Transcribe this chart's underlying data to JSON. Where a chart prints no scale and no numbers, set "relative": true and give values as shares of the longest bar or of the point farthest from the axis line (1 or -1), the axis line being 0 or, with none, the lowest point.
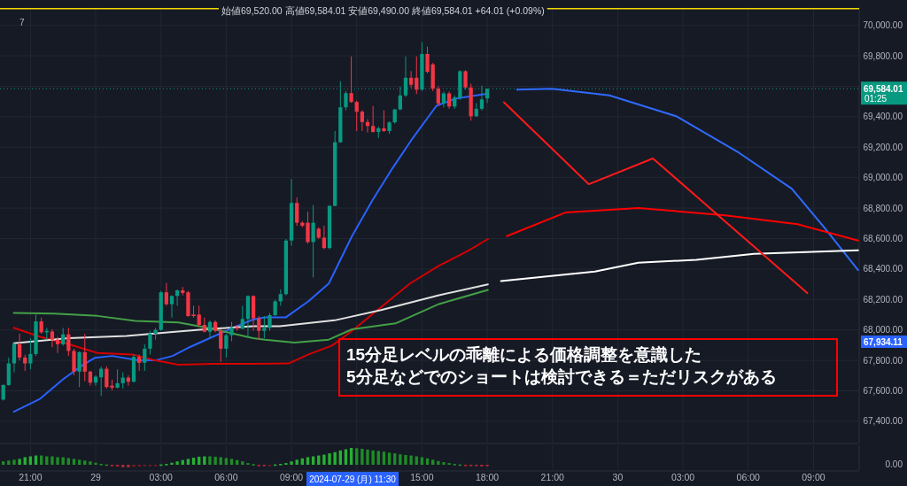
{
  "chart_data": [
    {
      "type": "candlestick",
      "subtitle": "始値69,520.00 高値69,584.01 安値69,490.00 終値69,584.01 +64.01 (+0.09%)",
      "x": [
        "2024-07-28T19:45",
        "2024-07-28T20:00",
        "2024-07-28T20:15",
        "2024-07-28T20:30",
        "2024-07-28T20:45",
        "2024-07-28T21:00",
        "2024-07-28T21:15",
        "2024-07-28T21:30",
        "2024-07-28T21:45",
        "2024-07-28T22:00",
        "2024-07-28T22:15",
        "2024-07-28T22:30",
        "2024-07-28T22:45",
        "2024-07-28T23:00",
        "2024-07-28T23:15",
        "2024-07-28T23:30",
        "2024-07-28T23:45",
        "2024-07-29T00:00",
        "2024-07-29T00:15",
        "2024-07-29T00:30",
        "2024-07-29T00:45",
        "2024-07-29T01:00",
        "2024-07-29T01:15",
        "2024-07-29T01:30",
        "2024-07-29T01:45",
        "2024-07-29T02:00",
        "2024-07-29T02:15",
        "2024-07-29T02:30",
        "2024-07-29T02:45",
        "2024-07-29T03:00",
        "2024-07-29T03:15",
        "2024-07-29T03:30",
        "2024-07-29T03:45",
        "2024-07-29T04:00",
        "2024-07-29T04:15",
        "2024-07-29T04:30",
        "2024-07-29T04:45",
        "2024-07-29T05:00",
        "2024-07-29T05:15",
        "2024-07-29T05:30",
        "2024-07-29T05:45",
        "2024-07-29T06:00",
        "2024-07-29T06:15",
        "2024-07-29T06:30",
        "2024-07-29T06:45",
        "2024-07-29T07:00",
        "2024-07-29T07:15",
        "2024-07-29T07:30",
        "2024-07-29T07:45",
        "2024-07-29T08:00",
        "2024-07-29T08:15",
        "2024-07-29T08:30",
        "2024-07-29T08:45",
        "2024-07-29T09:00",
        "2024-07-29T09:15",
        "2024-07-29T09:30",
        "2024-07-29T09:45",
        "2024-07-29T10:00",
        "2024-07-29T10:15",
        "2024-07-29T10:30",
        "2024-07-29T10:45",
        "2024-07-29T11:00",
        "2024-07-29T11:15",
        "2024-07-29T11:30",
        "2024-07-29T11:45",
        "2024-07-29T12:00",
        "2024-07-29T12:15",
        "2024-07-29T12:30",
        "2024-07-29T12:45",
        "2024-07-29T13:00",
        "2024-07-29T13:15",
        "2024-07-29T13:30",
        "2024-07-29T13:45",
        "2024-07-29T14:00",
        "2024-07-29T14:15",
        "2024-07-29T14:30",
        "2024-07-29T14:45",
        "2024-07-29T15:00",
        "2024-07-29T15:15",
        "2024-07-29T15:30",
        "2024-07-29T15:45",
        "2024-07-29T16:00",
        "2024-07-29T16:15",
        "2024-07-29T16:30",
        "2024-07-29T16:45",
        "2024-07-29T17:00",
        "2024-07-29T17:15",
        "2024-07-29T17:30",
        "2024-07-29T17:45",
        "2024-07-29T18:00"
      ],
      "ohlc": [
        [
          67543,
          67644,
          67536,
          67638
        ],
        [
          67638,
          67819,
          67634,
          67780
        ],
        [
          67780,
          67916,
          67722,
          67906
        ],
        [
          67906,
          67975,
          67800,
          67819
        ],
        [
          67819,
          67838,
          67731,
          67780
        ],
        [
          67780,
          67945,
          67741,
          67842
        ],
        [
          67842,
          68101,
          67829,
          68056
        ],
        [
          68056,
          68081,
          67975,
          67984
        ],
        [
          67984,
          68013,
          67936,
          67994
        ],
        [
          67990,
          68004,
          67887,
          67936
        ],
        [
          67936,
          67955,
          67848,
          67906
        ],
        [
          67906,
          68013,
          67897,
          67971
        ],
        [
          67971,
          68013,
          67829,
          67862
        ],
        [
          67862,
          67877,
          67702,
          67726
        ],
        [
          67726,
          67858,
          67625,
          67854
        ],
        [
          67854,
          67975,
          67664,
          67726
        ],
        [
          67726,
          67732,
          67634,
          67654
        ],
        [
          67654,
          67702,
          67634,
          67693
        ],
        [
          67689,
          67761,
          67566,
          67745
        ],
        [
          67745,
          67761,
          67615,
          67625
        ],
        [
          67634,
          67673,
          67605,
          67621
        ],
        [
          67621,
          67741,
          67615,
          67650
        ],
        [
          67650,
          67722,
          67615,
          67687
        ],
        [
          67687,
          67702,
          67634,
          67660
        ],
        [
          67660,
          67838,
          67654,
          67823
        ],
        [
          67823,
          67838,
          67731,
          67784
        ],
        [
          67784,
          67906,
          67731,
          67877
        ],
        [
          67877,
          67994,
          67838,
          67975
        ],
        [
          67975,
          68013,
          67936,
          68000
        ],
        [
          68000,
          68256,
          67994,
          68247
        ],
        [
          68247,
          68309,
          68159,
          68169
        ],
        [
          68169,
          68227,
          68081,
          68223
        ],
        [
          68223,
          68266,
          68159,
          68260
        ],
        [
          68260,
          68282,
          68227,
          68243
        ],
        [
          68247,
          68256,
          68087,
          68091
        ],
        [
          68101,
          68159,
          68081,
          68091
        ],
        [
          68101,
          68159,
          68023,
          68033
        ],
        [
          68033,
          68081,
          67984,
          67988
        ],
        [
          67988,
          68062,
          67945,
          68052
        ],
        [
          68052,
          68062,
          67984,
          67994
        ],
        [
          67994,
          68004,
          67790,
          67877
        ],
        [
          67877,
          67975,
          67819,
          67965
        ],
        [
          67965,
          68052,
          67926,
          68017
        ],
        [
          68017,
          68033,
          67994,
          68008
        ],
        [
          68008,
          68159,
          68004,
          68072
        ],
        [
          68072,
          68227,
          67945,
          68223
        ],
        [
          68223,
          68227,
          67994,
          68076
        ],
        [
          68076,
          68091,
          67936,
          67994
        ],
        [
          67994,
          68091,
          67945,
          68013
        ],
        [
          68013,
          68111,
          67994,
          68097
        ],
        [
          68097,
          68198,
          68091,
          68188
        ],
        [
          68188,
          68266,
          68159,
          68235
        ],
        [
          68235,
          68597,
          68227,
          68587
        ],
        [
          68587,
          68991,
          68554,
          68834
        ],
        [
          68834,
          68869,
          68684,
          68704
        ],
        [
          68704,
          68713,
          68674,
          68684
        ],
        [
          68704,
          68777,
          68567,
          68577
        ],
        [
          68577,
          68820,
          68344,
          68704
        ],
        [
          68665,
          68674,
          68597,
          68606
        ],
        [
          68606,
          68684,
          68529,
          68538
        ],
        [
          68538,
          68820,
          68529,
          68814
        ],
        [
          68814,
          69306,
          68814,
          69232
        ],
        [
          69232,
          69633,
          69228,
          69462
        ],
        [
          69462,
          69569,
          69442,
          69555
        ],
        [
          69555,
          69796,
          69491,
          69497
        ],
        [
          69497,
          69506,
          69306,
          69433
        ],
        [
          69433,
          69442,
          69306,
          69365
        ],
        [
          69365,
          69384,
          69296,
          69339
        ],
        [
          69339,
          69471,
          69296,
          69300
        ],
        [
          69300,
          69335,
          69261,
          69324
        ],
        [
          69324,
          69442,
          69300,
          69306
        ],
        [
          69306,
          69370,
          69287,
          69363
        ],
        [
          69363,
          69452,
          69355,
          69448
        ],
        [
          69448,
          69598,
          69442,
          69540
        ],
        [
          69540,
          69796,
          69530,
          69656
        ],
        [
          69656,
          69700,
          69590,
          69610
        ],
        [
          69656,
          69796,
          69549,
          69578
        ],
        [
          69578,
          69890,
          69569,
          69812
        ],
        [
          69812,
          69860,
          69685,
          69695
        ],
        [
          69744,
          69753,
          69569,
          69584
        ],
        [
          69584,
          69600,
          69471,
          69487
        ],
        [
          69487,
          69565,
          69462,
          69553
        ],
        [
          69553,
          69565,
          69452,
          69467
        ],
        [
          69467,
          69540,
          69452,
          69526
        ],
        [
          69526,
          69705,
          69510,
          69699
        ],
        [
          69699,
          69705,
          69578,
          69592
        ],
        [
          69592,
          69617,
          69374,
          69403
        ],
        [
          69403,
          69490,
          69400,
          69452
        ],
        [
          69452,
          69604,
          69440,
          69514
        ],
        [
          69520,
          69584.01,
          69490,
          69584.01
        ]
      ],
      "colors": [
        "#089981",
        "#089981",
        "#089981",
        "#f23645",
        "#f23645",
        "#089981",
        "#089981",
        "#f23645",
        "#089981",
        "#f23645",
        "#f23645",
        "#089981",
        "#f23645",
        "#f23645",
        "#089981",
        "#f23645",
        "#f23645",
        "#089981",
        "#089981",
        "#f23645",
        "#f23645",
        "#089981",
        "#089981",
        "#f23645",
        "#089981",
        "#f23645",
        "#089981",
        "#089981",
        "#089981",
        "#089981",
        "#f23645",
        "#089981",
        "#089981",
        "#f23645",
        "#f23645",
        "#f23645",
        "#f23645",
        "#f23645",
        "#089981",
        "#f23645",
        "#f23645",
        "#089981",
        "#089981",
        "#f23645",
        "#089981",
        "#089981",
        "#f23645",
        "#f23645",
        "#089981",
        "#089981",
        "#089981",
        "#089981",
        "#089981",
        "#089981",
        "#f23645",
        "#f23645",
        "#f23645",
        "#089981",
        "#f23645",
        "#f23645",
        "#089981",
        "#089981",
        "#089981",
        "#089981",
        "#f23645",
        "#f23645",
        "#f23645",
        "#f23645",
        "#f23645",
        "#089981",
        "#f23645",
        "#089981",
        "#089981",
        "#089981",
        "#089981",
        "#f23645",
        "#f23645",
        "#089981",
        "#f23645",
        "#f23645",
        "#f23645",
        "#089981",
        "#f23645",
        "#089981",
        "#089981",
        "#f23645",
        "#f23645",
        "#089981",
        "#089981",
        "#089981"
      ],
      "series": [
        {
          "type": "line",
          "color": "#2962ff",
          "x": [
            "2024-07-28T20:14",
            "2024-07-28T21:25",
            "2024-07-28T22:29",
            "2024-07-28T23:25",
            "2024-07-28T23:57",
            "2024-07-29T00:45",
            "2024-07-29T01:57",
            "2024-07-29T02:44",
            "2024-07-29T03:32",
            "2024-07-29T04:20",
            "2024-07-29T05:24",
            "2024-07-29T06:28",
            "2024-07-29T07:14",
            "2024-07-29T07:47",
            "2024-07-29T08:44",
            "2024-07-29T09:47",
            "2024-07-29T10:43",
            "2024-07-29T11:47",
            "2024-07-29T12:43",
            "2024-07-29T13:39",
            "2024-07-29T14:34",
            "2024-07-29T15:40",
            "2024-07-29T16:34",
            "2024-07-29T17:54"
          ],
          "values": [
            67463,
            67545,
            67674,
            67771,
            67816,
            67829,
            67800,
            67800,
            67829,
            67888,
            67956,
            68024,
            68068,
            68082,
            68082,
            68189,
            68305,
            68616,
            68850,
            69063,
            69258,
            69472,
            69520,
            69549
          ]
        },
        {
          "type": "line",
          "color": "#d50000",
          "x": [
            "2024-07-28T20:14",
            "2024-07-28T21:25",
            "2024-07-28T22:45",
            "2024-07-29T00:05",
            "2024-07-29T01:41",
            "2024-07-29T02:44",
            "2024-07-29T03:48",
            "2024-07-29T05:24",
            "2024-07-29T07:14",
            "2024-07-29T08:52",
            "2024-07-29T09:47",
            "2024-07-29T10:52",
            "2024-07-29T11:47",
            "2024-07-29T13:07",
            "2024-07-29T14:27",
            "2024-07-29T15:47",
            "2024-07-29T17:07",
            "2024-07-29T18:02"
          ],
          "values": [
            68014,
            67956,
            67907,
            67849,
            67839,
            67800,
            67771,
            67777,
            67777,
            67780,
            67839,
            67897,
            67994,
            68150,
            68305,
            68422,
            68519,
            68597
          ]
        },
        {
          "type": "line",
          "color": "#e0e0e0",
          "x": [
            "2024-07-28T20:14",
            "2024-07-28T22:45",
            "2024-07-29T01:25",
            "2024-07-29T03:25",
            "2024-07-29T05:24",
            "2024-07-29T07:14",
            "2024-07-29T08:28",
            "2024-07-29T10:59",
            "2024-07-29T13:07",
            "2024-07-29T15:47",
            "2024-07-29T18:02"
          ],
          "values": [
            67913,
            67946,
            67961,
            67985,
            68008,
            68024,
            68024,
            68063,
            68131,
            68228,
            68299
          ]
        },
        {
          "type": "line",
          "color": "#43a047",
          "x": [
            "2024-07-28T20:14",
            "2024-07-28T22:05",
            "2024-07-29T00:05",
            "2024-07-29T01:49",
            "2024-07-29T03:48",
            "2024-07-29T05:08",
            "2024-07-29T07:14",
            "2024-07-29T07:47",
            "2024-07-29T09:08",
            "2024-07-29T10:43",
            "2024-07-29T11:47",
            "2024-07-29T13:47",
            "2024-07-29T15:47",
            "2024-07-29T18:02"
          ],
          "values": [
            68112,
            68107,
            68092,
            68059,
            68049,
            68014,
            67946,
            67936,
            67917,
            67936,
            68004,
            68043,
            68170,
            68263
          ]
        },
        {
          "type": "line",
          "color": "#2f6bff",
          "x": [
            "2024-07-29T19:22",
            "2024-07-29T20:58",
            "2024-07-29T23:37",
            "2024-07-30T02:41",
            "2024-07-30T05:36",
            "2024-07-30T08:00",
            "2024-07-30T09:36",
            "2024-07-30T11:03"
          ],
          "values": [
            69578,
            69584,
            69540,
            69404,
            69161,
            68928,
            68655,
            68393
          ]
        },
        {
          "type": "line",
          "color": "#ff0000",
          "x": [
            "2024-07-29T18:54",
            "2024-07-29T21:37",
            "2024-07-30T00:57",
            "2024-07-30T04:56",
            "2024-07-30T08:16",
            "2024-07-30T11:03"
          ],
          "values": [
            68616,
            68772,
            68801,
            68753,
            68694,
            68587
          ]
        },
        {
          "type": "line",
          "color": "#ffffff",
          "x": [
            "2024-07-29T18:38",
            "2024-07-29T22:57",
            "2024-07-30T00:57",
            "2024-07-30T03:37",
            "2024-07-30T06:16",
            "2024-07-30T11:03"
          ],
          "values": [
            68321,
            68383,
            68441,
            68461,
            68500,
            68523
          ]
        },
        {
          "type": "line",
          "color": "#ff1a1a",
          "x": [
            "2024-07-29T18:46",
            "2024-07-29T22:40",
            "2024-07-30T01:37",
            "2024-07-30T08:43"
          ],
          "values": [
            69495,
            68957,
            69126,
            68242
          ]
        }
      ],
      "xlim": [
        "2024-07-28T19:36",
        "2024-07-30T11:06"
      ],
      "xticks": [
        {
          "value": "2024-07-28T21:00",
          "label": null
        },
        {
          "value": "2024-07-29T00:00",
          "label": null
        },
        {
          "value": "2024-07-29T03:00",
          "label": null
        },
        {
          "value": "2024-07-29T06:00",
          "label": null
        },
        {
          "value": "2024-07-29T09:00",
          "label": null
        },
        {
          "value": "2024-07-29T12:00",
          "label": null
        },
        {
          "value": "2024-07-29T15:00",
          "label": null
        },
        {
          "value": "2024-07-29T18:00",
          "label": null
        },
        {
          "value": "2024-07-29T21:00",
          "label": null
        },
        {
          "value": "2024-07-30T00:00",
          "label": null
        },
        {
          "value": "2024-07-30T03:00",
          "label": null
        },
        {
          "value": "2024-07-30T06:00",
          "label": null
        },
        {
          "value": "2024-07-30T09:00",
          "label": null
        }
      ],
      "ylim": [
        67260,
        70120
      ],
      "yticks": [
        {
          "value": 67400,
          "label": "67,400.00"
        },
        {
          "value": 67600,
          "label": "67,600.00"
        },
        {
          "value": 67800,
          "label": "67,800.00"
        },
        {
          "value": 68000,
          "label": "68,000.00"
        },
        {
          "value": 68200,
          "label": "68,200.00"
        },
        {
          "value": 68400,
          "label": "68,400.00"
        },
        {
          "value": 68600,
          "label": "68,600.00"
        },
        {
          "value": 68800,
          "label": "68,800.00"
        },
        {
          "value": 69000,
          "label": "69,000.00"
        },
        {
          "value": 69200,
          "label": "69,200.00"
        },
        {
          "value": 69400,
          "label": "69,400.00"
        },
        {
          "value": 69600,
          "label": null
        },
        {
          "value": 69800,
          "label": "69,800.00"
        },
        {
          "value": 70000,
          "label": "70,000.00"
        }
      ],
      "grid": true,
      "tick_labels": "y",
      "ref_lines": [
        {
          "axis": "y",
          "value": 69584.01,
          "label": "69,584.01",
          "color": "#089981",
          "line_style": "dotted"
        },
        {
          "axis": "y",
          "value": 70110,
          "label": null,
          "color": "#f0d800",
          "line_style": "solid"
        }
      ],
      "annotations": [
        "7",
        "01:25",
        "67,934.11",
        "15分足レベルの乖離による価格調整を意識した\n5分足などでのショートは検討できる＝ただリスクがある"
      ]
    },
    {
      "type": "bar",
      "relative": true,
      "x": [
        "2024-07-28T19:45",
        "2024-07-28T20:00",
        "2024-07-28T20:15",
        "2024-07-28T20:30",
        "2024-07-28T20:45",
        "2024-07-28T21:00",
        "2024-07-28T21:15",
        "2024-07-28T21:30",
        "2024-07-28T21:45",
        "2024-07-28T22:00",
        "2024-07-28T22:15",
        "2024-07-28T22:30",
        "2024-07-28T22:45",
        "2024-07-28T23:00",
        "2024-07-28T23:15",
        "2024-07-28T23:30",
        "2024-07-28T23:45",
        "2024-07-29T00:00",
        "2024-07-29T00:15",
        "2024-07-29T00:30",
        "2024-07-29T00:45",
        "2024-07-29T01:00",
        "2024-07-29T01:15",
        "2024-07-29T01:30",
        "2024-07-29T01:45",
        "2024-07-29T02:00",
        "2024-07-29T02:15",
        "2024-07-29T02:30",
        "2024-07-29T02:45",
        "2024-07-29T03:00",
        "2024-07-29T03:15",
        "2024-07-29T03:30",
        "2024-07-29T03:45",
        "2024-07-29T04:00",
        "2024-07-29T04:15",
        "2024-07-29T04:30",
        "2024-07-29T04:45",
        "2024-07-29T05:00",
        "2024-07-29T05:15",
        "2024-07-29T05:30",
        "2024-07-29T05:45",
        "2024-07-29T06:00",
        "2024-07-29T06:15",
        "2024-07-29T06:30",
        "2024-07-29T06:45",
        "2024-07-29T07:00",
        "2024-07-29T07:15",
        "2024-07-29T07:30",
        "2024-07-29T07:45",
        "2024-07-29T08:00",
        "2024-07-29T08:15",
        "2024-07-29T08:30",
        "2024-07-29T08:45",
        "2024-07-29T09:00",
        "2024-07-29T09:15",
        "2024-07-29T09:30",
        "2024-07-29T09:45",
        "2024-07-29T10:00",
        "2024-07-29T10:15",
        "2024-07-29T10:30",
        "2024-07-29T10:45",
        "2024-07-29T11:00",
        "2024-07-29T11:15",
        "2024-07-29T11:30",
        "2024-07-29T11:45",
        "2024-07-29T12:00",
        "2024-07-29T12:15",
        "2024-07-29T12:30",
        "2024-07-29T12:45",
        "2024-07-29T13:00",
        "2024-07-29T13:15",
        "2024-07-29T13:30",
        "2024-07-29T13:45",
        "2024-07-29T14:00",
        "2024-07-29T14:15",
        "2024-07-29T14:30",
        "2024-07-29T14:45",
        "2024-07-29T15:00",
        "2024-07-29T15:15",
        "2024-07-29T15:30",
        "2024-07-29T15:45",
        "2024-07-29T16:00",
        "2024-07-29T16:15",
        "2024-07-29T16:30",
        "2024-07-29T16:45",
        "2024-07-29T17:00",
        "2024-07-29T17:15",
        "2024-07-29T17:30",
        "2024-07-29T17:45",
        "2024-07-29T18:00"
      ],
      "values": [
        0.2,
        0.25,
        0.3,
        0.35,
        0.45,
        0.5,
        0.55,
        0.55,
        0.5,
        0.5,
        0.45,
        0.45,
        0.4,
        0.35,
        0.3,
        0.25,
        0.2,
        0.12,
        0.05,
        0.02,
        -0.05,
        -0.1,
        -0.15,
        -0.15,
        -0.12,
        -0.1,
        -0.08,
        -0.05,
        -0.03,
        0.02,
        0.05,
        0.12,
        0.2,
        0.28,
        0.35,
        0.42,
        0.48,
        0.5,
        0.5,
        0.48,
        0.45,
        0.4,
        0.35,
        0.28,
        0.2,
        0.1,
        0.04,
        -0.04,
        -0.06,
        -0.04,
        0.02,
        0.05,
        0.1,
        0.2,
        0.3,
        0.38,
        0.45,
        0.5,
        0.55,
        0.6,
        0.68,
        0.75,
        0.85,
        0.92,
        1,
        0.98,
        0.95,
        0.9,
        0.85,
        0.82,
        0.78,
        0.72,
        0.68,
        0.62,
        0.58,
        0.55,
        0.5,
        0.45,
        0.38,
        0.3,
        0.22,
        0.15,
        0.1,
        0.05,
        0.02,
        -0.03,
        -0.05,
        -0.08,
        -0.1,
        -0.08
      ],
      "colors": [
        "#1e8c26",
        "#1e8c26",
        "#1e8c26",
        "#27b033",
        "#27b033",
        "#27b033",
        "#27b033",
        "#1e8c26",
        "#1e8c26",
        "#1e8c26",
        "#1e8c26",
        "#1e8c26",
        "#1e8c26",
        "#1e8c26",
        "#1e8c26",
        "#1e8c26",
        "#1e8c26",
        "#1e8c26",
        "#1e8c26",
        "#1e8c26",
        "#b22833",
        "#b22833",
        "#b22833",
        "#b22833",
        "#7a1c22",
        "#7a1c22",
        "#7a1c22",
        "#7a1c22",
        "#7a1c22",
        "#27b033",
        "#27b033",
        "#27b033",
        "#27b033",
        "#27b033",
        "#27b033",
        "#27b033",
        "#27b033",
        "#27b033",
        "#1e8c26",
        "#1e8c26",
        "#1e8c26",
        "#1e8c26",
        "#1e8c26",
        "#1e8c26",
        "#1e8c26",
        "#1e8c26",
        "#1e8c26",
        "#b22833",
        "#b22833",
        "#7a1c22",
        "#27b033",
        "#27b033",
        "#27b033",
        "#27b033",
        "#27b033",
        "#27b033",
        "#27b033",
        "#27b033",
        "#27b033",
        "#27b033",
        "#27b033",
        "#27b033",
        "#27b033",
        "#27b033",
        "#27b033",
        "#1e8c26",
        "#1e8c26",
        "#1e8c26",
        "#1e8c26",
        "#1e8c26",
        "#1e8c26",
        "#1e8c26",
        "#1e8c26",
        "#1e8c26",
        "#1e8c26",
        "#1e8c26",
        "#1e8c26",
        "#1e8c26",
        "#1e8c26",
        "#1e8c26",
        "#1e8c26",
        "#1e8c26",
        "#1e8c26",
        "#1e8c26",
        "#1e8c26",
        "#b22833",
        "#b22833",
        "#b22833",
        "#b22833",
        "#b22833"
      ],
      "xlim": [
        "2024-07-28T19:36",
        "2024-07-30T11:06"
      ],
      "xticks": [
        {
          "value": "2024-07-28T21:00",
          "label": "21:00"
        },
        {
          "value": "2024-07-29T00:00",
          "label": "29"
        },
        {
          "value": "2024-07-29T03:00",
          "label": "03:00"
        },
        {
          "value": "2024-07-29T06:00",
          "label": "06:00"
        },
        {
          "value": "2024-07-29T09:00",
          "label": "09:00"
        },
        {
          "value": "2024-07-29T12:00",
          "label": null
        },
        {
          "value": "2024-07-29T15:00",
          "label": "15:00"
        },
        {
          "value": "2024-07-29T18:00",
          "label": "18:00"
        },
        {
          "value": "2024-07-29T21:00",
          "label": "21:00"
        },
        {
          "value": "2024-07-30T00:00",
          "label": "30"
        },
        {
          "value": "2024-07-30T03:00",
          "label": "03:00"
        },
        {
          "value": "2024-07-30T06:00",
          "label": "06:00"
        },
        {
          "value": "2024-07-30T09:00",
          "label": "09:00"
        }
      ],
      "grid": "x",
      "tick_labels": "x",
      "annotations": [
        "0.00",
        "2024-07-29 (月) 11:30"
      ]
    }
  ]
}
